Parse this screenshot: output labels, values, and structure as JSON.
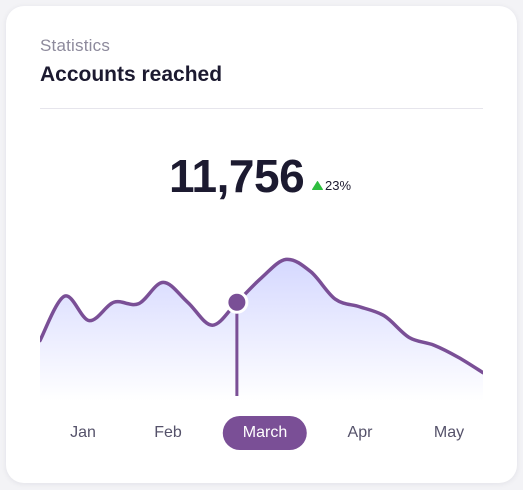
{
  "header": {
    "subtitle": "Statistics",
    "title": "Accounts reached"
  },
  "metric": {
    "value": "11,756",
    "change": "23%",
    "trend_icon": "triangle-up-icon"
  },
  "colors": {
    "line": "#7a4f96",
    "fill_top": "#d5d8ff",
    "fill_bottom": "#ffffff",
    "positive": "#2fbe3f",
    "active_pill": "#7a4f96"
  },
  "chart_data": {
    "type": "area",
    "categories": [
      "Jan",
      "Feb",
      "March",
      "Apr",
      "May"
    ],
    "x": [
      0,
      0.25,
      0.5,
      0.75,
      1.0,
      1.25,
      1.5,
      1.75,
      2.0,
      2.25,
      2.5,
      2.75,
      3.0,
      3.25,
      3.5,
      3.75,
      4.0,
      4.25,
      4.5
    ],
    "values": [
      0.33,
      0.62,
      0.46,
      0.58,
      0.57,
      0.71,
      0.58,
      0.43,
      0.58,
      0.74,
      0.86,
      0.78,
      0.6,
      0.55,
      0.49,
      0.35,
      0.3,
      0.22,
      0.12
    ],
    "selected": "March",
    "selected_value": 0.58,
    "xlim": [
      0,
      4.5
    ],
    "ylim": [
      0,
      1
    ],
    "grid": false,
    "legend": "none"
  },
  "months": [
    {
      "label": "Jan",
      "active": false
    },
    {
      "label": "Feb",
      "active": false
    },
    {
      "label": "March",
      "active": true
    },
    {
      "label": "Apr",
      "active": false
    },
    {
      "label": "May",
      "active": false
    }
  ]
}
